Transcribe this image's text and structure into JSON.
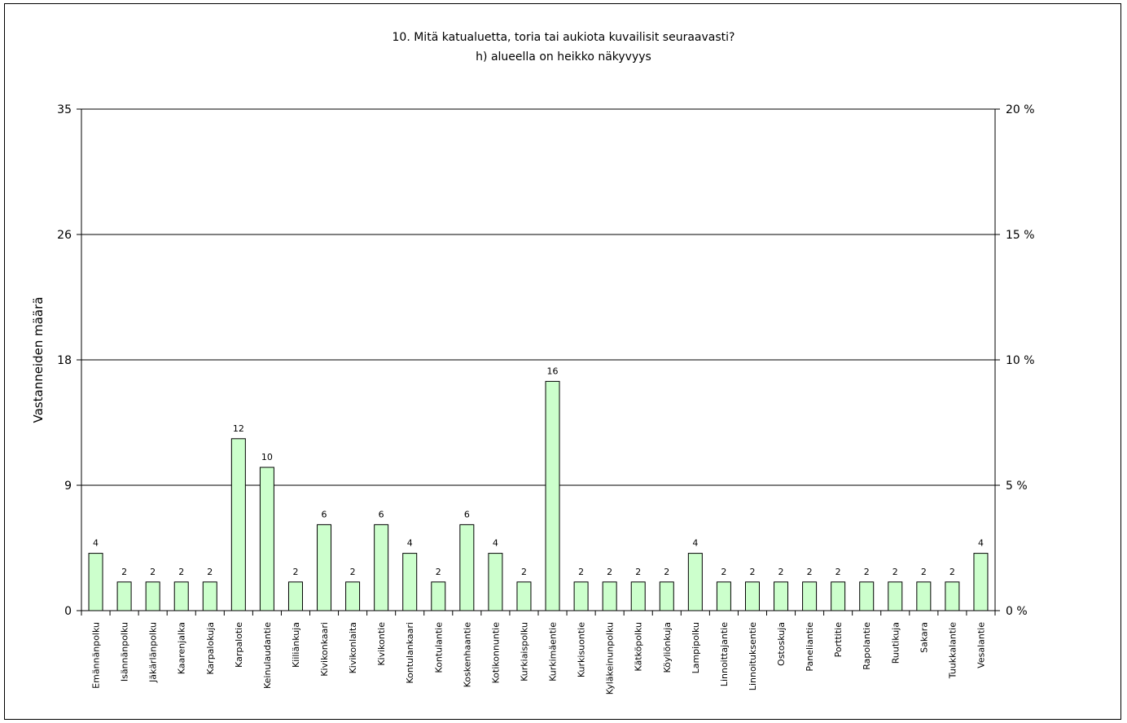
{
  "chart_data": {
    "type": "bar",
    "title_line1": "10. Mitä katualuetta, toria tai aukiota kuvailisit seuraavasti?",
    "title_line2": "h) alueella on heikko näkyvyys",
    "ylabel": "Vastanneiden määrä",
    "xlabel": "",
    "ylim": [
      0,
      35
    ],
    "yticks": [
      "35",
      "26",
      "18",
      "9",
      "0"
    ],
    "ytick_values": [
      35,
      26.25,
      17.5,
      8.75,
      0
    ],
    "y2ticks": [
      "20 %",
      "15 %",
      "10 %",
      "5 %",
      "0 %"
    ],
    "grid": true,
    "bar_color": "#ccffcc",
    "categories": [
      "Emännänpolku",
      "Isännänpolku",
      "Jäkärlänpolku",
      "Kaarenjalka",
      "Karpalokuja",
      "Karpalotie",
      "Keinulaudantie",
      "Kiiliänkuja",
      "Kivikonkaari",
      "Kivikonlaita",
      "Kivikontie",
      "Kontulankaari",
      "Kontulantie",
      "Koskenhaantie",
      "Kotikonnuntie",
      "Kurkiaispolku",
      "Kurkimäentie",
      "Kurkisuontie",
      "Kyläkeinunpolku",
      "Kätköpolku",
      "Köyliönkuja",
      "Lampipolku",
      "Linnoittajantie",
      "Linnoituksentie",
      "Ostoskuja",
      "Paneliantie",
      "Porttitie",
      "Rapolantie",
      "Ruutikuja",
      "Sakara",
      "Tuukkalantie",
      "Vesalantie"
    ],
    "values": [
      4,
      2,
      2,
      2,
      2,
      12,
      10,
      2,
      6,
      2,
      6,
      4,
      2,
      6,
      4,
      2,
      16,
      2,
      2,
      2,
      2,
      4,
      2,
      2,
      2,
      2,
      2,
      2,
      2,
      2,
      2,
      4
    ]
  }
}
